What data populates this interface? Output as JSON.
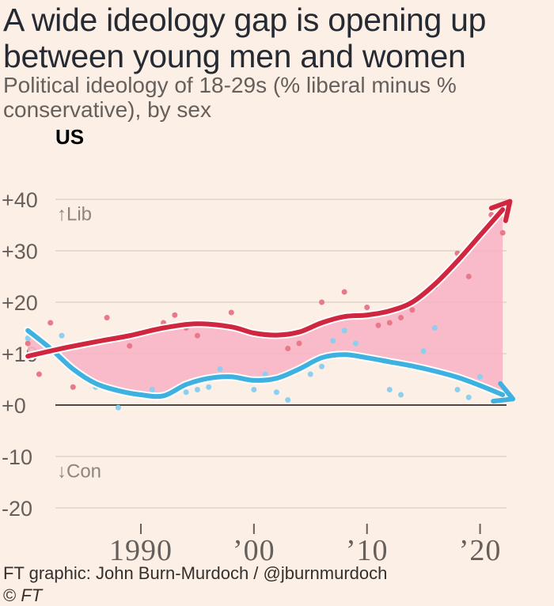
{
  "header": {
    "title": "A wide ideology gap is opening up between young men and women",
    "subtitle": "Political ideology of 18-29s (% liberal minus % conservative), by sex",
    "panel_label": "US"
  },
  "footer": {
    "source": "FT graphic: John Burn-Murdoch / @jburnmurdoch",
    "copyright_symbol": "©",
    "copyright_brand": "FT"
  },
  "colors": {
    "women": "#d1263f",
    "men": "#3fb1e0",
    "gap_fill": "#f8b4c5",
    "women_dots": "#e8798a",
    "men_dots": "#8ccfee",
    "grid": "#e6d9ce",
    "zero_line": "#4d4845",
    "tick_text": "#66605c",
    "annotation": "#8c8580"
  },
  "chart_data": {
    "type": "line",
    "title": "A wide ideology gap is opening up between young men and women",
    "subtitle": "Political ideology of 18-29s (% liberal minus % conservative), by sex",
    "panel": "US",
    "xlim": [
      1980,
      2024
    ],
    "ylim": [
      -22,
      43
    ],
    "yticks": [
      -20,
      -10,
      0,
      10,
      20,
      30,
      40
    ],
    "ytick_labels": [
      "-20",
      "-10",
      "+0",
      "+10",
      "+20",
      "+30",
      "+40"
    ],
    "xticks": [
      1990,
      2000,
      2010,
      2020
    ],
    "xtick_labels": [
      "1990",
      "’00",
      "’10",
      "’20"
    ],
    "annotations": [
      {
        "text": "↑Lib",
        "year": 1980.4,
        "value": 37.5
      },
      {
        "text": "↓Con",
        "year": 1980.4,
        "value": -12.5
      }
    ],
    "grid": true,
    "legend": "none",
    "fill_between": "gap shaded between the two trend lines",
    "series": [
      {
        "key": "women",
        "trend": [
          [
            1980,
            9.5
          ],
          [
            1983,
            11
          ],
          [
            1986,
            12.3
          ],
          [
            1989,
            13.5
          ],
          [
            1992,
            15
          ],
          [
            1995,
            15.8
          ],
          [
            1998,
            15.2
          ],
          [
            2000,
            14
          ],
          [
            2002,
            13.6
          ],
          [
            2004,
            14.2
          ],
          [
            2006,
            16
          ],
          [
            2008,
            17.2
          ],
          [
            2010,
            17.5
          ],
          [
            2012,
            18.3
          ],
          [
            2014,
            20
          ],
          [
            2016,
            23.5
          ],
          [
            2018,
            28
          ],
          [
            2020,
            33
          ],
          [
            2022,
            38
          ]
        ],
        "points": [
          [
            1980,
            12
          ],
          [
            1981,
            6
          ],
          [
            1982,
            16
          ],
          [
            1984,
            3.5
          ],
          [
            1987,
            17
          ],
          [
            1989,
            11.5
          ],
          [
            1992,
            16
          ],
          [
            1993,
            17.5
          ],
          [
            1994,
            15
          ],
          [
            1995,
            13.5
          ],
          [
            1998,
            18
          ],
          [
            2003,
            11
          ],
          [
            2004,
            12
          ],
          [
            2006,
            20
          ],
          [
            2008,
            22
          ],
          [
            2010,
            19
          ],
          [
            2011,
            15.5
          ],
          [
            2012,
            16
          ],
          [
            2013,
            17
          ],
          [
            2014,
            18.5
          ],
          [
            2016,
            23
          ],
          [
            2018,
            29.5
          ],
          [
            2019,
            25
          ],
          [
            2021,
            37
          ],
          [
            2022,
            33.5
          ]
        ]
      },
      {
        "key": "men",
        "trend": [
          [
            1980,
            14.5
          ],
          [
            1982,
            11
          ],
          [
            1984,
            7
          ],
          [
            1986,
            4.2
          ],
          [
            1988,
            2.8
          ],
          [
            1990,
            2
          ],
          [
            1992,
            1.8
          ],
          [
            1994,
            4
          ],
          [
            1996,
            5.2
          ],
          [
            1998,
            5.5
          ],
          [
            2000,
            4.8
          ],
          [
            2002,
            5.2
          ],
          [
            2004,
            7
          ],
          [
            2006,
            9.2
          ],
          [
            2008,
            9.8
          ],
          [
            2010,
            9.2
          ],
          [
            2012,
            8.4
          ],
          [
            2014,
            7.6
          ],
          [
            2016,
            6.6
          ],
          [
            2018,
            5.4
          ],
          [
            2020,
            3.8
          ],
          [
            2022,
            2
          ]
        ],
        "points": [
          [
            1980,
            13
          ],
          [
            1983,
            13.5
          ],
          [
            1986,
            3.5
          ],
          [
            1988,
            -0.5
          ],
          [
            1991,
            3
          ],
          [
            1994,
            2.5
          ],
          [
            1995,
            3
          ],
          [
            1996,
            3.5
          ],
          [
            1997,
            7
          ],
          [
            2000,
            3
          ],
          [
            2001,
            6
          ],
          [
            2002,
            2.5
          ],
          [
            2003,
            1
          ],
          [
            2005,
            6
          ],
          [
            2006,
            7.5
          ],
          [
            2007,
            12.5
          ],
          [
            2008,
            14.5
          ],
          [
            2009,
            12
          ],
          [
            2012,
            3
          ],
          [
            2013,
            2
          ],
          [
            2015,
            10.5
          ],
          [
            2016,
            15
          ],
          [
            2018,
            3
          ],
          [
            2019,
            1.5
          ],
          [
            2020,
            5.5
          ]
        ]
      }
    ]
  }
}
